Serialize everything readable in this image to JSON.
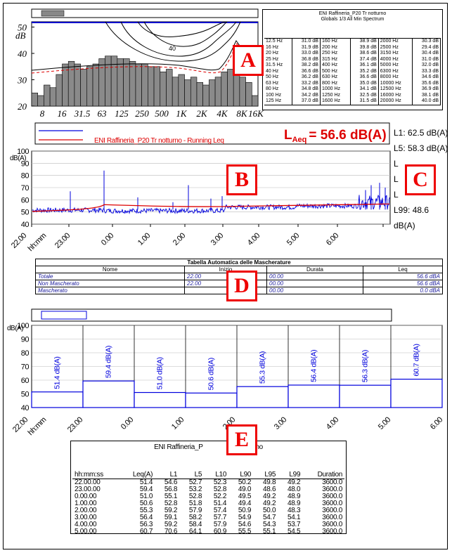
{
  "spectrum": {
    "title": "ENI Raffineria_P20 Tr notturno",
    "subtitle": "Globals 1/3 All Min Spectrum",
    "y_unit": "dB",
    "y_ticks": [
      "20",
      "30",
      "40",
      "50"
    ],
    "x_ticks": [
      "8",
      "16",
      "31.5",
      "63",
      "125",
      "250",
      "500",
      "1K",
      "2K",
      "4K",
      "8K",
      "16K"
    ],
    "curve_label": "40",
    "bars": [
      25,
      24,
      28,
      27,
      32,
      36,
      37,
      36,
      34,
      35,
      36,
      38,
      39,
      39,
      38,
      38,
      37,
      36,
      36,
      35,
      35,
      33,
      34,
      31,
      32,
      30,
      31,
      29,
      28,
      30,
      31,
      33,
      34,
      33,
      31,
      29,
      24
    ],
    "table_rows": [
      [
        "12.5 Hz",
        "31.0 dB",
        "160 Hz",
        "38.9 dB",
        "2000 Hz",
        "30.3 dB"
      ],
      [
        "16 Hz",
        "31.9 dB",
        "200 Hz",
        "39.8 dB",
        "2500 Hz",
        "29.4 dB"
      ],
      [
        "20 Hz",
        "33.0 dB",
        "250 Hz",
        "38.6 dB",
        "3150 Hz",
        "30.4 dB"
      ],
      [
        "25 Hz",
        "36.8 dB",
        "315 Hz",
        "37.4 dB",
        "4000 Hz",
        "31.0 dB"
      ],
      [
        "31.5 Hz",
        "38.2 dB",
        "400 Hz",
        "36.1 dB",
        "5000 Hz",
        "32.0 dB"
      ],
      [
        "40 Hz",
        "36.6 dB",
        "500 Hz",
        "35.2 dB",
        "6300 Hz",
        "33.3 dB"
      ],
      [
        "50 Hz",
        "36.2 dB",
        "630 Hz",
        "36.6 dB",
        "8000 Hz",
        "34.6 dB"
      ],
      [
        "63 Hz",
        "33.2 dB",
        "800 Hz",
        "35.0 dB",
        "10000 Hz",
        "35.6 dB"
      ],
      [
        "80 Hz",
        "34.8 dB",
        "1000 Hz",
        "34.1 dB",
        "12500 Hz",
        "36.9 dB"
      ],
      [
        "100 Hz",
        "34.2 dB",
        "1250 Hz",
        "32.5 dB",
        "16000 Hz",
        "38.1 dB"
      ],
      [
        "125 Hz",
        "37.0 dB",
        "1600 Hz",
        "31.5 dB",
        "20000 Hz",
        "40.0 dB"
      ]
    ]
  },
  "timeline": {
    "legend_label": "ENI Raffineria_P20 Tr notturno - Running Leq",
    "leq_label": "L",
    "leq_sub": "Aeq",
    "leq_value": "= 56.6 dB(A)",
    "y_unit": "dB(A)",
    "y_ticks": [
      "40",
      "50",
      "60",
      "70",
      "80",
      "90",
      "100"
    ],
    "x_ticks": [
      "22.00",
      "hh:mm",
      "23.00",
      "0.00",
      "1.00",
      "2.00",
      "3.00",
      "4.00",
      "5.00",
      "6.00"
    ],
    "stats": [
      "L1: 62.5 dB(A)",
      "L5: 58.3 dB(A)",
      "L",
      "L",
      "L",
      "L99: 48.6 dB(A)"
    ],
    "series_colors": {
      "level": "#0000dd",
      "running_leq": "#dd0000"
    }
  },
  "masking": {
    "title": "Tabella Automatica delle Mascherature",
    "headers": [
      "Nome",
      "Inizio",
      "Durata",
      "Leq"
    ],
    "rows": [
      [
        "Totale",
        "22.00",
        "00.00",
        "56.6 dBA"
      ],
      [
        "Non Mascherato",
        "22.00",
        "00.00",
        "56.6 dBA"
      ],
      [
        "Mascherato",
        "",
        "00.00",
        "0.0 dBA"
      ]
    ],
    "header_inizio_visible": "Iniz"
  },
  "hourly_chart": {
    "y_unit": "dB(A)",
    "y_ticks": [
      "40",
      "50",
      "60",
      "70",
      "80",
      "90",
      "100"
    ],
    "x_ticks": [
      "22.00",
      "hh:mm",
      "23.00",
      "0.00",
      "1.00",
      "2.00",
      "3.00",
      "4.00",
      "5.00",
      "6.00"
    ],
    "labels": [
      "51.4 dB(A)",
      "59.4 dB(A)",
      "51.0 dB(A)",
      "50.6 dB(A)",
      "55.3 dB(A)",
      "56.4 dB(A)",
      "56.3 dB(A)",
      "60.7 dB(A)"
    ]
  },
  "hourly_table": {
    "title_left": "ENI Raffineria_P",
    "title_right": "Tr notturno",
    "headers": [
      "hh:mm:ss",
      "Leq(A)",
      "L1",
      "L5",
      "L10",
      "L90",
      "L95",
      "L99",
      "Duration"
    ],
    "rows": [
      [
        "22.00.00",
        "51.4",
        "54.6",
        "52.7",
        "52.3",
        "50.2",
        "49.8",
        "49.2",
        "3600.0"
      ],
      [
        "23.00.00",
        "59.4",
        "56.8",
        "53.2",
        "52.8",
        "49.0",
        "48.6",
        "48.0",
        "3600.0"
      ],
      [
        "0.00.00",
        "51.0",
        "55.1",
        "52.8",
        "52.2",
        "49.5",
        "49.2",
        "48.9",
        "3600.0"
      ],
      [
        "1.00.00",
        "50.6",
        "52.8",
        "51.8",
        "51.4",
        "49.4",
        "49.2",
        "48.9",
        "3600.0"
      ],
      [
        "2.00.00",
        "55.3",
        "59.2",
        "57.9",
        "57.4",
        "50.9",
        "50.0",
        "48.3",
        "3600.0"
      ],
      [
        "3.00.00",
        "56.4",
        "59.1",
        "58.2",
        "57.7",
        "54.9",
        "54.7",
        "54.1",
        "3600.0"
      ],
      [
        "4.00.00",
        "56.3",
        "59.2",
        "58.4",
        "57.9",
        "54.6",
        "54.3",
        "53.7",
        "3600.0"
      ],
      [
        "5.00.00",
        "60.7",
        "70.6",
        "64.1",
        "60.9",
        "55.5",
        "55.1",
        "54.5",
        "3600.0"
      ]
    ]
  },
  "callouts": [
    "A",
    "B",
    "C",
    "D",
    "E"
  ],
  "chart_data": [
    {
      "type": "bar",
      "title": "ENI Raffineria_P20 Tr notturno",
      "subtitle": "Globals 1/3 All Min Spectrum",
      "ylabel": "dB",
      "ylim": [
        20,
        53
      ],
      "xscale": "log",
      "categories": [
        "12.5 Hz",
        "16 Hz",
        "20 Hz",
        "25 Hz",
        "31.5 Hz",
        "40 Hz",
        "50 Hz",
        "63 Hz",
        "80 Hz",
        "100 Hz",
        "125 Hz",
        "160 Hz",
        "200 Hz",
        "250 Hz",
        "315 Hz",
        "400 Hz",
        "500 Hz",
        "630 Hz",
        "800 Hz",
        "1000 Hz",
        "1250 Hz",
        "1600 Hz",
        "2000 Hz",
        "2500 Hz",
        "3150 Hz",
        "4000 Hz",
        "5000 Hz",
        "6300 Hz",
        "8000 Hz",
        "10000 Hz",
        "12500 Hz",
        "16000 Hz",
        "20000 Hz"
      ],
      "values": [
        31.0,
        31.9,
        33.0,
        36.8,
        38.2,
        36.6,
        36.2,
        33.2,
        34.8,
        34.2,
        37.0,
        38.9,
        39.8,
        38.6,
        37.4,
        36.1,
        35.2,
        36.6,
        35.0,
        34.1,
        32.5,
        31.5,
        30.3,
        29.4,
        30.4,
        31.0,
        32.0,
        33.3,
        34.6,
        35.6,
        36.9,
        38.1,
        40.0
      ]
    },
    {
      "type": "line",
      "ylabel": "dB(A)",
      "ylim": [
        40,
        100
      ],
      "x_range": [
        "22.00",
        "6.00"
      ],
      "series": [
        {
          "name": "",
          "color": "#0000dd"
        },
        {
          "name": "ENI Raffineria_P20 Tr notturno - Running Leq",
          "color": "#dd0000"
        }
      ],
      "annotation": "LAeq = 56.6 dB(A)"
    },
    {
      "type": "bar",
      "ylabel": "dB(A)",
      "ylim": [
        40,
        100
      ],
      "categories": [
        "22.00",
        "23.00",
        "0.00",
        "1.00",
        "2.00",
        "3.00",
        "4.00",
        "5.00"
      ],
      "values": [
        51.4,
        59.4,
        51.0,
        50.6,
        55.3,
        56.4,
        56.3,
        60.7
      ]
    }
  ]
}
